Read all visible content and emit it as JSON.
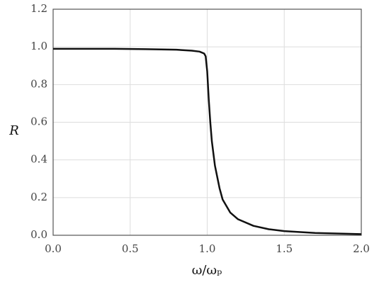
{
  "chart_data": {
    "type": "line",
    "xlabel": "ω/ωₚ",
    "ylabel": "R",
    "x": [
      0,
      0.2,
      0.4,
      0.6,
      0.8,
      0.9,
      0.95,
      0.98,
      0.99,
      1.0,
      1.01,
      1.02,
      1.03,
      1.05,
      1.08,
      1.1,
      1.15,
      1.2,
      1.3,
      1.4,
      1.5,
      1.7,
      2.0
    ],
    "series": [
      {
        "color": "#111111",
        "values": [
          0.99,
          0.99,
          0.99,
          0.988,
          0.985,
          0.98,
          0.975,
          0.965,
          0.95,
          0.87,
          0.72,
          0.6,
          0.5,
          0.37,
          0.25,
          0.19,
          0.12,
          0.085,
          0.05,
          0.032,
          0.022,
          0.012,
          0.006
        ]
      }
    ],
    "xlim": [
      0,
      2
    ],
    "ylim": [
      0,
      1.2
    ],
    "xticks": [
      {
        "value": 0,
        "label": "0.0"
      },
      0.5,
      {
        "value": 1,
        "label": "1.0"
      },
      1.5,
      {
        "value": 2,
        "label": "2.0"
      }
    ],
    "yticks": [
      {
        "value": 0,
        "label": "0.0"
      },
      0.2,
      0.4,
      0.6,
      0.8,
      {
        "value": 1,
        "label": "1.0"
      },
      1.2
    ],
    "grid": true
  }
}
